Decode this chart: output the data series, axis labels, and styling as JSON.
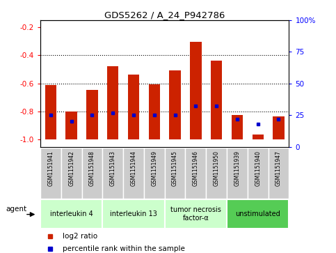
{
  "title": "GDS5262 / A_24_P942786",
  "samples": [
    "GSM1151941",
    "GSM1151942",
    "GSM1151948",
    "GSM1151943",
    "GSM1151944",
    "GSM1151949",
    "GSM1151945",
    "GSM1151946",
    "GSM1151950",
    "GSM1151939",
    "GSM1151940",
    "GSM1151947"
  ],
  "log2_ratios": [
    -0.61,
    -0.8,
    -0.645,
    -0.475,
    -0.535,
    -0.605,
    -0.505,
    -0.305,
    -0.435,
    -0.825,
    -0.965,
    -0.835
  ],
  "percentile_ranks": [
    25,
    20,
    25,
    27,
    25,
    25,
    25,
    32,
    32,
    22,
    18,
    22
  ],
  "groups": [
    {
      "label": "interleukin 4",
      "start": 0,
      "end": 2,
      "color": "#ccffcc"
    },
    {
      "label": "interleukin 13",
      "start": 3,
      "end": 5,
      "color": "#ccffcc"
    },
    {
      "label": "tumor necrosis\nfactor-α",
      "start": 6,
      "end": 8,
      "color": "#ccffcc"
    },
    {
      "label": "unstimulated",
      "start": 9,
      "end": 11,
      "color": "#55cc55"
    }
  ],
  "bar_color": "#cc2200",
  "dot_color": "#0000cc",
  "bar_bottom": -1.0,
  "ylim_left": [
    -1.05,
    -0.15
  ],
  "ylim_right": [
    0,
    100
  ],
  "yticks_left": [
    -1.0,
    -0.8,
    -0.6,
    -0.4,
    -0.2
  ],
  "yticks_right": [
    0,
    25,
    50,
    75,
    100
  ],
  "ytick_labels_right": [
    "0",
    "25",
    "50",
    "75",
    "100%"
  ],
  "grid_values": [
    -0.8,
    -0.6,
    -0.4
  ],
  "background_color": "#ffffff",
  "plot_bg_color": "#ffffff",
  "sample_box_color": "#cccccc",
  "agent_label": "agent",
  "legend_log2": "log2 ratio",
  "legend_pct": "percentile rank within the sample",
  "bar_width": 0.55
}
